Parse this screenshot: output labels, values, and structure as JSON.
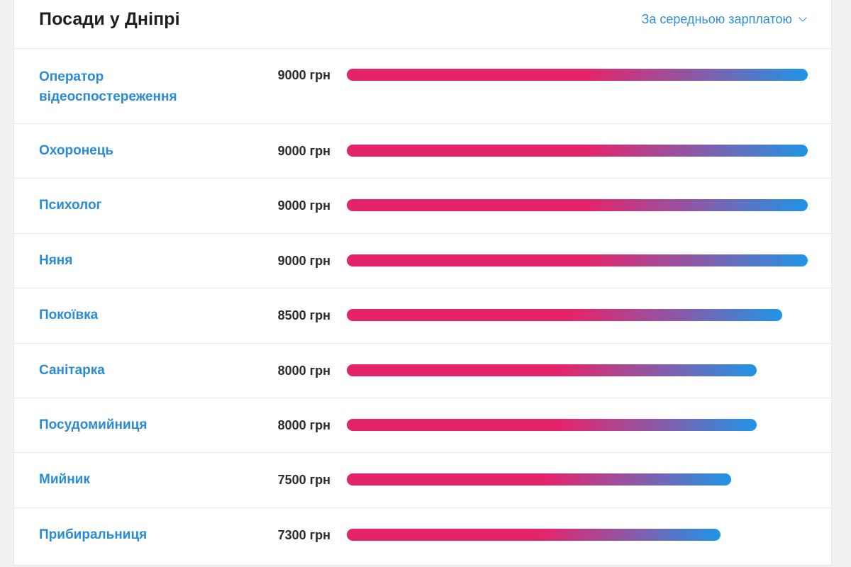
{
  "header": {
    "title": "Посади у Дніпрі",
    "sort_label": "За середньою зарплатою",
    "sort_icon": "chevron-down-icon"
  },
  "colors": {
    "bar_start": "#e4246a",
    "bar_end": "#2094e6",
    "link": "#2a8bd6"
  },
  "jobs": [
    {
      "title": "Оператор відеоспостереження",
      "salary": "9000 грн",
      "value": 9000
    },
    {
      "title": "Охоронець",
      "salary": "9000 грн",
      "value": 9000
    },
    {
      "title": "Психолог",
      "salary": "9000 грн",
      "value": 9000
    },
    {
      "title": "Няня",
      "salary": "9000 грн",
      "value": 9000
    },
    {
      "title": "Покоївка",
      "salary": "8500 грн",
      "value": 8500
    },
    {
      "title": "Санітарка",
      "salary": "8000 грн",
      "value": 8000
    },
    {
      "title": "Посудомийниця",
      "salary": "8000 грн",
      "value": 8000
    },
    {
      "title": "Мийник",
      "salary": "7500 грн",
      "value": 7500
    },
    {
      "title": "Прибиральниця",
      "salary": "7300 грн",
      "value": 7300
    }
  ]
}
